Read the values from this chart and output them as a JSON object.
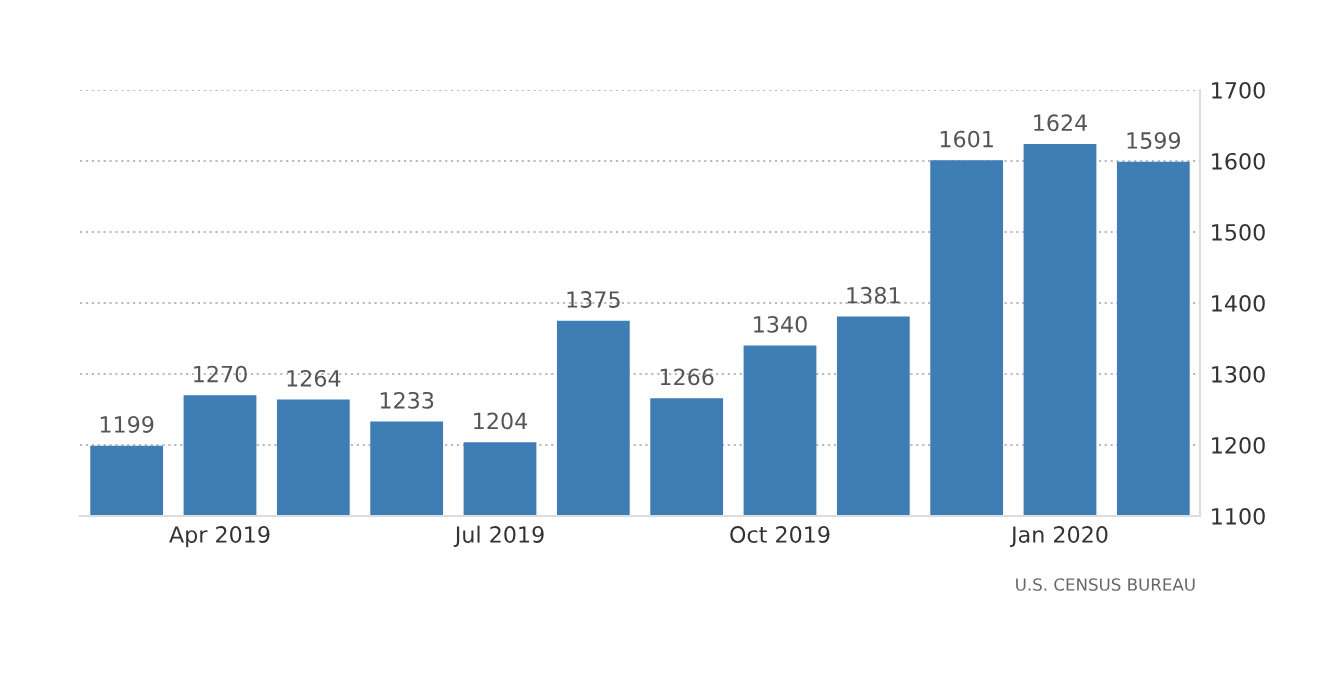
{
  "chart_data": {
    "type": "bar",
    "categories": [
      null,
      "Apr 2019",
      null,
      null,
      "Jul 2019",
      null,
      null,
      "Oct 2019",
      null,
      null,
      "Jan 2020",
      null
    ],
    "values": [
      1199,
      1270,
      1264,
      1233,
      1204,
      1375,
      1266,
      1340,
      1381,
      1601,
      1624,
      1599
    ],
    "color": "#3f7db5",
    "ylim": [
      1100,
      1700
    ],
    "yticks": [
      1100,
      1200,
      1300,
      1400,
      1500,
      1600,
      1700
    ],
    "grid": "y",
    "data_labels": true,
    "annotations": [
      "U.S. CENSUS BUREAU"
    ]
  }
}
